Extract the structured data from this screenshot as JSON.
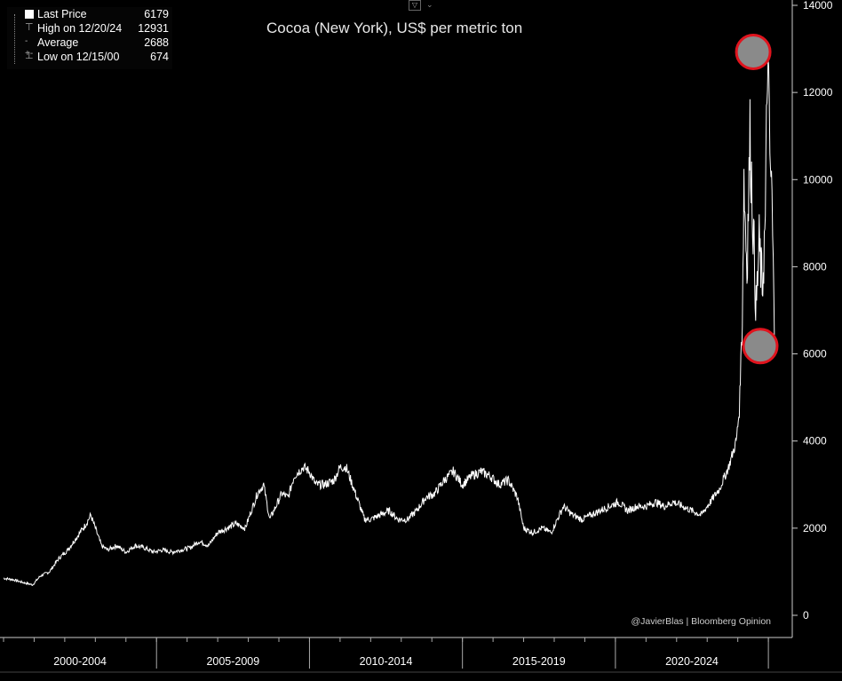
{
  "legend": {
    "items": [
      {
        "label": "Last Price",
        "value": "6179",
        "icon": "white-square-icon"
      },
      {
        "label": "High on 12/20/24",
        "value": "12931",
        "icon": "high-marker-icon"
      },
      {
        "label": "Average",
        "value": "2688",
        "icon": "average-marker-icon"
      },
      {
        "label": "Low on 12/15/00",
        "value": "674",
        "icon": "low-marker-icon"
      }
    ]
  },
  "credit": "@JavierBlas | Bloomberg Opinion",
  "colors": {
    "background": "#000000",
    "line": "#ffffff",
    "marker_fill": "#8a8a8a",
    "marker_ring": "#e0141e",
    "axis": "#cccccc"
  },
  "chart_data": {
    "type": "line",
    "title": "Cocoa (New York), US$ per metric ton",
    "xlabel": "",
    "ylabel": "",
    "ylim": [
      0,
      14000
    ],
    "xlim": [
      2000.0,
      2025.2
    ],
    "yticks": [
      0,
      2000,
      4000,
      6000,
      8000,
      10000,
      12000,
      14000
    ],
    "x_period_labels": [
      "2000-2004",
      "2005-2009",
      "2010-2014",
      "2015-2019",
      "2020-2024"
    ],
    "y_axis_side": "right",
    "grid": false,
    "legend_position": "top-left",
    "series": [
      {
        "name": "Last Price",
        "x": [
          2000.0,
          2000.3,
          2000.6,
          2000.95,
          2001.2,
          2001.5,
          2001.8,
          2002.1,
          2002.4,
          2002.7,
          2002.85,
          2003.0,
          2003.2,
          2003.4,
          2003.7,
          2004.0,
          2004.3,
          2004.6,
          2004.9,
          2005.2,
          2005.5,
          2005.8,
          2006.1,
          2006.4,
          2006.7,
          2007.0,
          2007.3,
          2007.6,
          2007.9,
          2008.1,
          2008.3,
          2008.5,
          2008.7,
          2008.9,
          2009.1,
          2009.3,
          2009.5,
          2009.8,
          2010.0,
          2010.2,
          2010.5,
          2010.8,
          2011.0,
          2011.2,
          2011.5,
          2011.8,
          2012.0,
          2012.3,
          2012.6,
          2012.9,
          2013.2,
          2013.5,
          2013.8,
          2014.1,
          2014.4,
          2014.7,
          2015.0,
          2015.3,
          2015.6,
          2015.9,
          2016.2,
          2016.5,
          2016.8,
          2017.0,
          2017.3,
          2017.6,
          2017.9,
          2018.1,
          2018.3,
          2018.6,
          2018.9,
          2019.2,
          2019.5,
          2019.8,
          2020.1,
          2020.4,
          2020.7,
          2021.0,
          2021.3,
          2021.6,
          2021.9,
          2022.2,
          2022.5,
          2022.8,
          2023.1,
          2023.4,
          2023.7,
          2023.95,
          2024.05,
          2024.15,
          2024.2,
          2024.3,
          2024.4,
          2024.5,
          2024.6,
          2024.7,
          2024.8,
          2024.9,
          2024.97,
          2025.05,
          2025.12,
          2025.2
        ],
        "y": [
          850,
          820,
          760,
          700,
          900,
          1000,
          1300,
          1500,
          1800,
          2100,
          2300,
          2000,
          1600,
          1500,
          1600,
          1450,
          1600,
          1550,
          1450,
          1500,
          1450,
          1500,
          1550,
          1700,
          1600,
          1900,
          2000,
          2100,
          2000,
          2400,
          2800,
          3000,
          2200,
          2500,
          2800,
          2700,
          3200,
          3400,
          3300,
          3000,
          3000,
          3100,
          3400,
          3400,
          2800,
          2200,
          2200,
          2300,
          2400,
          2200,
          2200,
          2400,
          2700,
          2800,
          3100,
          3300,
          3000,
          3200,
          3300,
          3200,
          3000,
          3100,
          2700,
          2000,
          1900,
          2000,
          1900,
          2200,
          2500,
          2300,
          2200,
          2300,
          2400,
          2500,
          2600,
          2400,
          2500,
          2500,
          2600,
          2500,
          2600,
          2500,
          2400,
          2300,
          2600,
          2900,
          3400,
          4000,
          4700,
          7000,
          10000,
          8000,
          11000,
          9000,
          7000,
          8500,
          7500,
          9000,
          12931,
          10500,
          9500,
          6179
        ]
      }
    ],
    "highlight_markers": [
      {
        "x": 2024.97,
        "y": 12931,
        "label": "High"
      },
      {
        "x": 2025.2,
        "y": 6179,
        "label": "Last"
      }
    ]
  }
}
